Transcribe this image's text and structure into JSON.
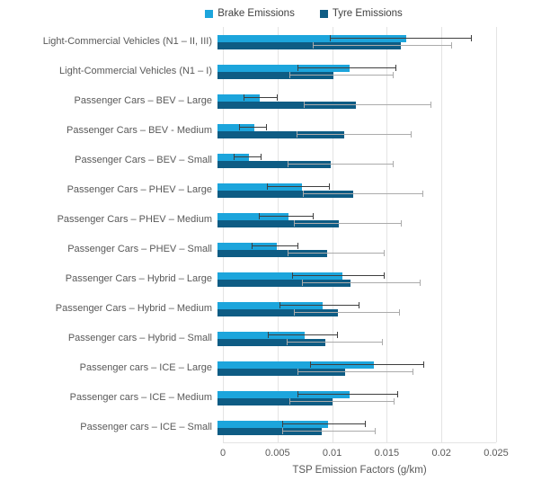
{
  "chart_data": {
    "type": "bar",
    "orientation": "horizontal",
    "title": "",
    "xlabel": "TSP Emission Factors (g/km)",
    "ylabel": "",
    "xlim": [
      0,
      0.025
    ],
    "xticks": [
      0,
      0.005,
      0.01,
      0.015,
      0.02,
      0.025
    ],
    "xtick_labels": [
      "0",
      "0.005",
      "0.01",
      "0.015",
      "0.02",
      "0.025"
    ],
    "grid": "vertical",
    "legend_position": "top-center",
    "categories": [
      "Light-Commercial Vehicles (N1 – II, III)",
      "Light-Commercial Vehicles (N1 – I)",
      "Passenger Cars – BEV – Large",
      "Passenger Cars – BEV - Medium",
      "Passenger Cars – BEV – Small",
      "Passenger Cars – PHEV – Large",
      "Passenger Cars – PHEV – Medium",
      "Passenger Cars – PHEV – Small",
      "Passenger Cars – Hybrid – Large",
      "Passenger Cars – Hybrid – Medium",
      "Passenger cars – Hybrid – Small",
      "Passenger cars – ICE – Large",
      "Passenger cars – ICE – Medium",
      "Passenger cars – ICE – Small"
    ],
    "series": [
      {
        "name": "Brake Emissions",
        "color": "#1ca5dc",
        "error_color": "#3f3f3f",
        "values": [
          0.0173,
          0.0121,
          0.0039,
          0.0034,
          0.0029,
          0.0077,
          0.0065,
          0.0054,
          0.0114,
          0.0096,
          0.008,
          0.0143,
          0.0121,
          0.0101
        ],
        "error_low": [
          0.0103,
          0.0073,
          0.0024,
          0.002,
          0.0015,
          0.0045,
          0.0038,
          0.0031,
          0.0068,
          0.0057,
          0.0046,
          0.0085,
          0.0073,
          0.0059
        ],
        "error_high": [
          0.0233,
          0.0164,
          0.0055,
          0.0045,
          0.004,
          0.0103,
          0.0088,
          0.0074,
          0.0153,
          0.013,
          0.011,
          0.0189,
          0.0165,
          0.0136
        ]
      },
      {
        "name": "Tyre Emissions",
        "color": "#0e5c84",
        "error_color": "#ababab",
        "values": [
          0.0168,
          0.0106,
          0.0127,
          0.0116,
          0.0104,
          0.0124,
          0.0111,
          0.01,
          0.0122,
          0.011,
          0.0099,
          0.0117,
          0.0105,
          0.0095
        ],
        "error_low": [
          0.0087,
          0.0066,
          0.0079,
          0.0072,
          0.0064,
          0.0078,
          0.007,
          0.0064,
          0.0077,
          0.007,
          0.0063,
          0.0073,
          0.0066,
          0.0059
        ],
        "error_high": [
          0.0215,
          0.0161,
          0.0196,
          0.0178,
          0.0161,
          0.0188,
          0.0169,
          0.0153,
          0.0186,
          0.0167,
          0.0151,
          0.0179,
          0.0162,
          0.0145
        ]
      }
    ],
    "colors": {
      "gridline": "#e4e4e4",
      "axis_text": "#595959",
      "legend_text": "#404040"
    }
  }
}
